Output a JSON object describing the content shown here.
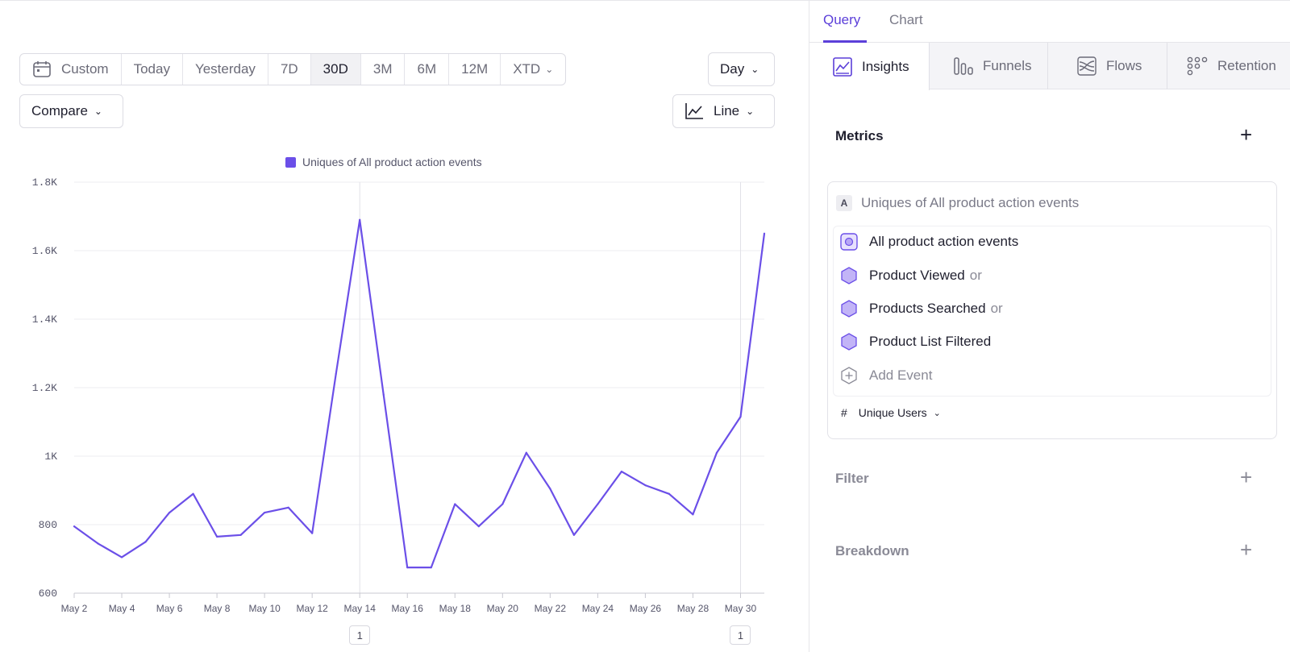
{
  "toolbar": {
    "date_options": [
      {
        "label": "Custom",
        "icon": "calendar-icon"
      },
      {
        "label": "Today"
      },
      {
        "label": "Yesterday"
      },
      {
        "label": "7D"
      },
      {
        "label": "30D",
        "active": true
      },
      {
        "label": "3M"
      },
      {
        "label": "6M"
      },
      {
        "label": "12M"
      },
      {
        "label": "XTD",
        "dropdown": true
      }
    ],
    "granularity": "Day",
    "compare_label": "Compare",
    "chart_type": "Line"
  },
  "chart_data": {
    "type": "line",
    "legend": "Uniques of All product action events",
    "series": [
      {
        "name": "Uniques of All product action events",
        "color": "#6b4fe8",
        "x": [
          "May 2",
          "May 3",
          "May 4",
          "May 5",
          "May 6",
          "May 7",
          "May 8",
          "May 9",
          "May 10",
          "May 11",
          "May 12",
          "May 13",
          "May 14",
          "May 15",
          "May 16",
          "May 17",
          "May 18",
          "May 19",
          "May 20",
          "May 21",
          "May 22",
          "May 23",
          "May 24",
          "May 25",
          "May 26",
          "May 27",
          "May 28",
          "May 29",
          "May 30",
          "May 31"
        ],
        "values": [
          795,
          745,
          705,
          750,
          835,
          890,
          765,
          770,
          835,
          850,
          775,
          1240,
          1690,
          1180,
          675,
          675,
          860,
          795,
          860,
          1010,
          905,
          770,
          860,
          955,
          915,
          890,
          830,
          1010,
          1115,
          1650
        ]
      }
    ],
    "x_ticks": [
      "May 2",
      "May 4",
      "May 6",
      "May 8",
      "May 10",
      "May 12",
      "May 14",
      "May 16",
      "May 18",
      "May 20",
      "May 22",
      "May 24",
      "May 26",
      "May 28",
      "May 30"
    ],
    "y_ticks": [
      "600",
      "800",
      "1K",
      "1.2K",
      "1.4K",
      "1.6K",
      "1.8K"
    ],
    "ylim": [
      600,
      1800
    ],
    "grid": true,
    "annotations": [
      {
        "x": "May 14",
        "label": "1"
      },
      {
        "x": "May 30",
        "label": "1"
      }
    ]
  },
  "panel": {
    "tabs": [
      "Query",
      "Chart"
    ],
    "active_tab": "Query",
    "reports": [
      {
        "label": "Insights",
        "icon": "insights-icon",
        "active": true
      },
      {
        "label": "Funnels",
        "icon": "funnels-icon"
      },
      {
        "label": "Flows",
        "icon": "flows-icon"
      },
      {
        "label": "Retention",
        "icon": "retention-icon"
      }
    ],
    "metrics_title": "Metrics",
    "metric": {
      "badge": "A",
      "name": "Uniques of All product action events",
      "events": [
        {
          "label": "All product action events",
          "suffix": ""
        },
        {
          "label": "Product Viewed",
          "suffix": "or"
        },
        {
          "label": "Products Searched",
          "suffix": "or"
        },
        {
          "label": "Product List Filtered",
          "suffix": ""
        }
      ],
      "add_event": "Add Event",
      "measure": "Unique Users",
      "measure_icon": "#"
    },
    "filter_title": "Filter",
    "breakdown_title": "Breakdown"
  }
}
